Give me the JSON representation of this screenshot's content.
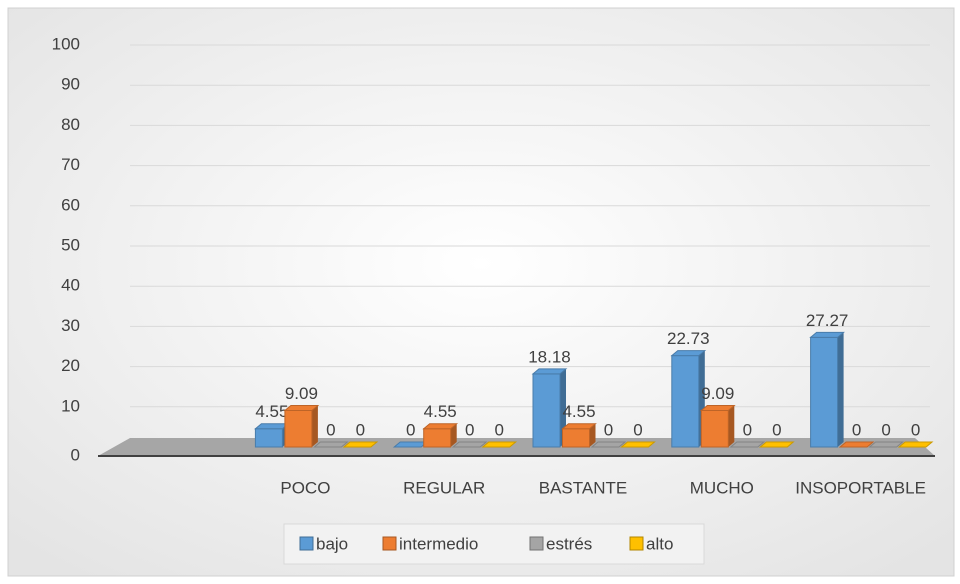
{
  "chart_data": {
    "type": "bar3d",
    "categories": [
      "POCO",
      "REGULAR",
      "BASTANTE",
      "MUCHO",
      "INSOPORTABLE"
    ],
    "series": [
      {
        "name": "bajo",
        "color": "#5b9bd5",
        "values": [
          4.55,
          0,
          18.18,
          22.73,
          27.27
        ]
      },
      {
        "name": "intermedio",
        "color": "#ed7d31",
        "values": [
          9.09,
          4.55,
          4.55,
          9.09,
          0
        ]
      },
      {
        "name": "estrés",
        "color": "#a5a5a5",
        "values": [
          0,
          0,
          0,
          0,
          0
        ]
      },
      {
        "name": "alto",
        "color": "#ffc000",
        "values": [
          0,
          0,
          0,
          0,
          0
        ]
      }
    ],
    "ylim": [
      0,
      100
    ],
    "yticks": [
      0,
      10,
      20,
      30,
      40,
      50,
      60,
      70,
      80,
      90,
      100
    ],
    "grid": true,
    "legend": "bottom"
  }
}
